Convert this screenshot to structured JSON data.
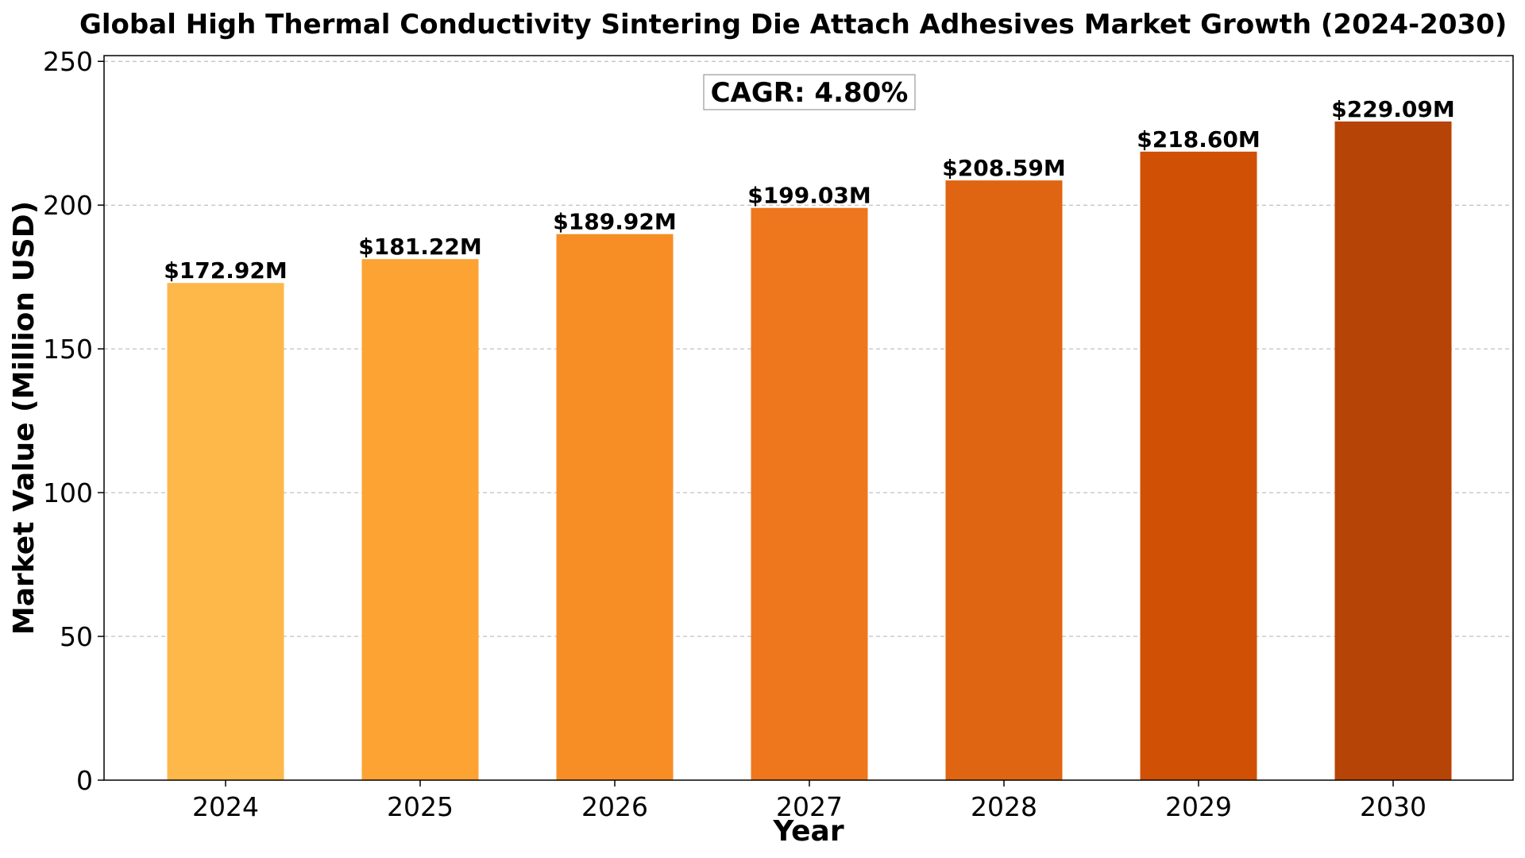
{
  "chart_data": {
    "type": "bar",
    "title": "Global High Thermal Conductivity Sintering Die Attach Adhesives Market Growth (2024-2030)",
    "xlabel": "Year",
    "ylabel": "Market Value (Million USD)",
    "categories": [
      "2024",
      "2025",
      "2026",
      "2027",
      "2028",
      "2029",
      "2030"
    ],
    "values": [
      172.92,
      181.22,
      189.92,
      199.03,
      208.59,
      218.6,
      229.09
    ],
    "data_labels": [
      "$172.92M",
      "$181.22M",
      "$189.92M",
      "$199.03M",
      "$208.59M",
      "$218.60M",
      "$229.09M"
    ],
    "bar_colors": [
      "#FDB849",
      "#FCA334",
      "#F78E25",
      "#EE761C",
      "#E06512",
      "#D05005",
      "#B64407"
    ],
    "ylim": [
      0,
      252
    ],
    "yticks": [
      0,
      50,
      100,
      150,
      200,
      250
    ],
    "grid": true,
    "annotation": "CAGR: 4.80%"
  }
}
